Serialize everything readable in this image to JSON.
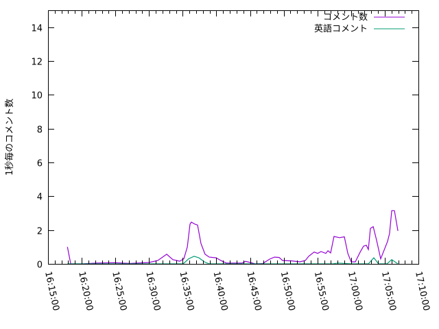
{
  "chart_data": {
    "type": "line",
    "title": "",
    "xlabel": "",
    "ylabel": "1秒毎のコメント数",
    "xlim": [
      "16:15:00",
      "17:10:00"
    ],
    "ylim": [
      0,
      15
    ],
    "x_ticks": [
      "16:15:00",
      "16:20:00",
      "16:25:00",
      "16:30:00",
      "16:35:00",
      "16:40:00",
      "16:45:00",
      "16:50:00",
      "16:55:00",
      "17:00:00",
      "17:05:00",
      "17:10:00"
    ],
    "y_ticks": [
      0,
      2,
      4,
      6,
      8,
      10,
      12,
      14
    ],
    "grid": false,
    "legend": "top-right",
    "series": [
      {
        "name": "コメント数",
        "color": "#9400d3",
        "points": [
          [
            "16:17:53",
            1.0
          ],
          [
            "16:18:22",
            0
          ],
          [
            "16:20:05",
            0
          ],
          [
            "16:22:08",
            0.05
          ],
          [
            "16:24:53",
            0.07
          ],
          [
            "16:27:13",
            0.03
          ],
          [
            "16:29:58",
            0.08
          ],
          [
            "16:31:18",
            0.2
          ],
          [
            "16:32:37",
            0.57
          ],
          [
            "16:33:32",
            0.25
          ],
          [
            "16:34:33",
            0.16
          ],
          [
            "16:35:10",
            0.3
          ],
          [
            "16:35:41",
            1.0
          ],
          [
            "16:36:05",
            2.35
          ],
          [
            "16:36:17",
            2.47
          ],
          [
            "16:36:48",
            2.35
          ],
          [
            "16:37:12",
            2.3
          ],
          [
            "16:37:43",
            1.2
          ],
          [
            "16:38:19",
            0.57
          ],
          [
            "16:38:56",
            0.4
          ],
          [
            "16:39:57",
            0.36
          ],
          [
            "16:40:40",
            0.2
          ],
          [
            "16:41:29",
            0.05
          ],
          [
            "16:43:49",
            0.05
          ],
          [
            "16:44:20",
            0.15
          ],
          [
            "16:45:03",
            0.08
          ],
          [
            "16:45:46",
            0
          ],
          [
            "16:46:53",
            0.02
          ],
          [
            "16:47:54",
            0.28
          ],
          [
            "16:48:37",
            0.4
          ],
          [
            "16:49:19",
            0.38
          ],
          [
            "16:49:50",
            0.2
          ],
          [
            "16:51:10",
            0.18
          ],
          [
            "16:52:23",
            0.12
          ],
          [
            "16:53:12",
            0.2
          ],
          [
            "16:53:42",
            0.45
          ],
          [
            "16:54:31",
            0.7
          ],
          [
            "16:55:02",
            0.62
          ],
          [
            "16:55:32",
            0.73
          ],
          [
            "16:56:15",
            0.62
          ],
          [
            "16:56:34",
            0.78
          ],
          [
            "16:56:58",
            0.65
          ],
          [
            "16:57:28",
            1.62
          ],
          [
            "16:58:17",
            1.55
          ],
          [
            "16:59:00",
            1.6
          ],
          [
            "16:59:31",
            0.62
          ],
          [
            "17:00:01",
            0.12
          ],
          [
            "17:00:38",
            0.12
          ],
          [
            "17:01:21",
            0.7
          ],
          [
            "17:01:51",
            1.05
          ],
          [
            "17:02:16",
            1.1
          ],
          [
            "17:02:34",
            0.85
          ],
          [
            "17:02:52",
            2.1
          ],
          [
            "17:03:17",
            2.2
          ],
          [
            "17:03:47",
            1.4
          ],
          [
            "17:04:24",
            0.3
          ],
          [
            "17:05:25",
            1.33
          ],
          [
            "17:05:43",
            1.8
          ],
          [
            "17:06:02",
            3.15
          ],
          [
            "17:06:26",
            3.15
          ],
          [
            "17:06:57",
            1.95
          ]
        ]
      },
      {
        "name": "英語コメント",
        "color": "#009e73",
        "points": [
          [
            "16:17:53",
            0
          ],
          [
            "16:35:04",
            0
          ],
          [
            "16:35:53",
            0.3
          ],
          [
            "16:36:41",
            0.45
          ],
          [
            "16:37:24",
            0.36
          ],
          [
            "16:38:13",
            0.12
          ],
          [
            "16:38:56",
            0
          ],
          [
            "16:57:20",
            0
          ],
          [
            "16:58:00",
            0.05
          ],
          [
            "16:59:00",
            0.03
          ],
          [
            "17:00:00",
            0
          ],
          [
            "17:02:34",
            0
          ],
          [
            "17:03:23",
            0.36
          ],
          [
            "17:04:05",
            0
          ],
          [
            "17:05:19",
            0
          ],
          [
            "17:06:02",
            0.25
          ],
          [
            "17:06:57",
            0
          ]
        ]
      }
    ]
  }
}
